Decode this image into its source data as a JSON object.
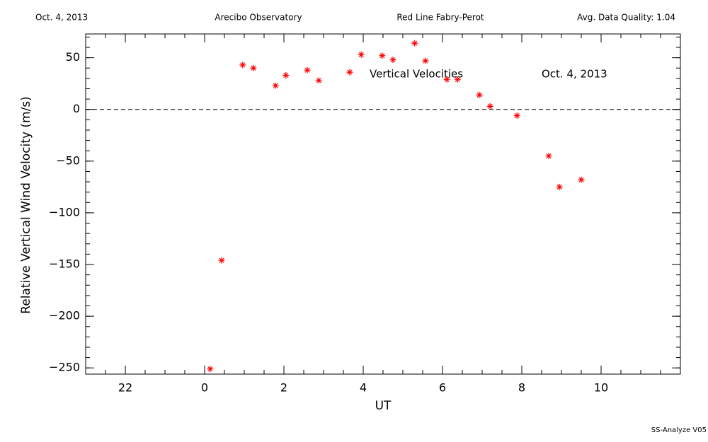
{
  "chart_data": {
    "type": "scatter",
    "header": [
      "Oct. 4, 2013",
      "Arecibo Observatory",
      "Red Line Fabry-Perot",
      "Avg. Data Quality: 1.04"
    ],
    "annotations": [
      "Vertical Velocities",
      "Oct. 4, 2013"
    ],
    "footer": "SS-Analyze V05",
    "xlabel": "UT",
    "ylabel": "Relative Vertical Wind Velocity (m/s)",
    "color": "#ff0000",
    "hline": 0,
    "x": [
      0.14,
      0.43,
      0.96,
      1.23,
      1.79,
      2.05,
      2.59,
      2.88,
      3.66,
      3.95,
      4.48,
      4.75,
      5.3,
      5.57,
      6.11,
      6.38,
      6.93,
      7.2,
      7.88,
      8.68,
      8.95,
      9.5
    ],
    "values": [
      -251,
      -146,
      43,
      40,
      23,
      33,
      38,
      28,
      36,
      53,
      52,
      48,
      64,
      47,
      29,
      29,
      14,
      3,
      -6,
      -45,
      -75,
      -68
    ],
    "xlim": [
      -3,
      12
    ],
    "ylim": [
      -256,
      73
    ],
    "xticks": [
      {
        "value": -2,
        "label": "22"
      },
      0,
      2,
      4,
      6,
      8,
      10
    ],
    "yticks": [
      {
        "value": -250,
        "label": "−250"
      },
      {
        "value": -200,
        "label": "−200"
      },
      {
        "value": -150,
        "label": "−150"
      },
      {
        "value": -100,
        "label": "−100"
      },
      {
        "value": -50,
        "label": "−50"
      },
      0,
      50
    ],
    "xminor_step": 0.5,
    "yminor_step": 10
  }
}
